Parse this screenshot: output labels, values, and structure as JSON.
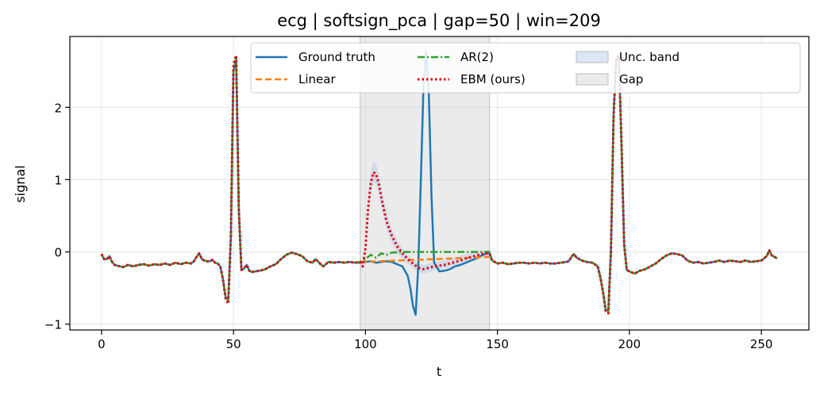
{
  "chart_data": {
    "type": "line",
    "title": "ecg | softsign_pca | gap=50 | win=209",
    "xlabel": "t",
    "ylabel": "signal",
    "xlim": [
      -12,
      268
    ],
    "ylim": [
      -1.08,
      2.98
    ],
    "xticks": [
      0,
      50,
      100,
      150,
      200,
      250
    ],
    "yticks": [
      -1,
      0,
      1,
      2
    ],
    "ytick_labels": [
      "−1",
      "0",
      "1",
      "2"
    ],
    "grid": true,
    "legend_position": "top-right",
    "gap_region": [
      98,
      147
    ],
    "series": [
      {
        "name": "Ground truth",
        "color": "#1f77b4",
        "style": "solid",
        "x": [
          0,
          1,
          2,
          3,
          4,
          5,
          6,
          7,
          8,
          9,
          10,
          12,
          14,
          16,
          18,
          20,
          22,
          24,
          26,
          28,
          30,
          32,
          34,
          35,
          36,
          37,
          38,
          39,
          40,
          41,
          42,
          43,
          44,
          45,
          46,
          47,
          48,
          49,
          50,
          51,
          52,
          53,
          54,
          55,
          56,
          57,
          58,
          60,
          62,
          64,
          66,
          68,
          70,
          72,
          74,
          76,
          78,
          80,
          81,
          82,
          83,
          84,
          86,
          88,
          90,
          92,
          94,
          96,
          98,
          100,
          102,
          104,
          106,
          108,
          110,
          112,
          114,
          116,
          117,
          118,
          119,
          120,
          121,
          122,
          123,
          124,
          125,
          126,
          128,
          130,
          132,
          134,
          136,
          138,
          140,
          142,
          144,
          146,
          147,
          148,
          150,
          152,
          154,
          156,
          158,
          160,
          162,
          164,
          166,
          168,
          170,
          172,
          174,
          176,
          177,
          178,
          179,
          180,
          181,
          182,
          184,
          186,
          188,
          189,
          190,
          191,
          192,
          193,
          194,
          195,
          196,
          197,
          198,
          199,
          200,
          202,
          204,
          206,
          208,
          210,
          212,
          214,
          216,
          218,
          220,
          222,
          224,
          226,
          228,
          230,
          232,
          234,
          236,
          238,
          240,
          242,
          244,
          246,
          248,
          250,
          252,
          253,
          254,
          256
        ],
        "y": [
          -0.03,
          -0.1,
          -0.1,
          -0.06,
          -0.14,
          -0.18,
          -0.19,
          -0.2,
          -0.21,
          -0.2,
          -0.18,
          -0.2,
          -0.18,
          -0.17,
          -0.19,
          -0.17,
          -0.18,
          -0.16,
          -0.18,
          -0.15,
          -0.17,
          -0.15,
          -0.16,
          -0.13,
          -0.07,
          -0.02,
          -0.1,
          -0.12,
          -0.13,
          -0.13,
          -0.11,
          -0.15,
          -0.16,
          -0.2,
          -0.38,
          -0.62,
          -0.68,
          0.2,
          2.5,
          2.68,
          0.6,
          -0.25,
          -0.23,
          -0.18,
          -0.26,
          -0.28,
          -0.27,
          -0.26,
          -0.24,
          -0.2,
          -0.17,
          -0.1,
          -0.04,
          -0.01,
          -0.03,
          -0.06,
          -0.13,
          -0.15,
          -0.1,
          -0.13,
          -0.17,
          -0.2,
          -0.14,
          -0.15,
          -0.14,
          -0.15,
          -0.14,
          -0.15,
          -0.15,
          -0.14,
          -0.13,
          -0.15,
          -0.14,
          -0.13,
          -0.14,
          -0.17,
          -0.2,
          -0.33,
          -0.5,
          -0.75,
          -0.87,
          -0.2,
          1.0,
          2.3,
          2.78,
          2.2,
          0.8,
          -0.15,
          -0.27,
          -0.26,
          -0.24,
          -0.2,
          -0.18,
          -0.15,
          -0.12,
          -0.09,
          -0.05,
          -0.02,
          -0.02,
          -0.12,
          -0.16,
          -0.15,
          -0.17,
          -0.16,
          -0.15,
          -0.15,
          -0.16,
          -0.15,
          -0.16,
          -0.15,
          -0.16,
          -0.16,
          -0.15,
          -0.14,
          -0.13,
          -0.07,
          -0.03,
          -0.08,
          -0.1,
          -0.12,
          -0.14,
          -0.15,
          -0.2,
          -0.35,
          -0.55,
          -0.8,
          -0.82,
          0.0,
          1.9,
          2.65,
          2.7,
          1.5,
          0.1,
          -0.25,
          -0.27,
          -0.3,
          -0.26,
          -0.24,
          -0.2,
          -0.16,
          -0.1,
          -0.05,
          -0.02,
          -0.03,
          -0.05,
          -0.12,
          -0.15,
          -0.14,
          -0.16,
          -0.15,
          -0.14,
          -0.12,
          -0.14,
          -0.12,
          -0.13,
          -0.14,
          -0.12,
          -0.14,
          -0.13,
          -0.12,
          -0.06,
          0.02,
          -0.05,
          -0.09
        ]
      },
      {
        "name": "Linear",
        "color": "#ff7f0e",
        "style": "dashed",
        "x": [
          98,
          147
        ],
        "y": [
          -0.14,
          -0.07
        ]
      },
      {
        "name": "AR(2)",
        "color": "#2ca02c",
        "style": "dashdot",
        "x": [
          0,
          1,
          2,
          3,
          4,
          5,
          6,
          7,
          8,
          9,
          10,
          12,
          14,
          16,
          18,
          20,
          22,
          24,
          26,
          28,
          30,
          32,
          34,
          35,
          36,
          37,
          38,
          39,
          40,
          41,
          42,
          43,
          44,
          45,
          46,
          47,
          48,
          49,
          50,
          51,
          52,
          53,
          54,
          55,
          56,
          57,
          58,
          60,
          62,
          64,
          66,
          68,
          70,
          72,
          74,
          76,
          78,
          80,
          81,
          82,
          83,
          84,
          86,
          88,
          90,
          92,
          94,
          96,
          98,
          100,
          102,
          104,
          106,
          108,
          110,
          115,
          120,
          125,
          130,
          135,
          140,
          145,
          147,
          148,
          150,
          152,
          154,
          156,
          158,
          160,
          162,
          164,
          166,
          168,
          170,
          172,
          174,
          176,
          177,
          178,
          179,
          180,
          181,
          182,
          184,
          186,
          188,
          189,
          190,
          191,
          192,
          193,
          194,
          195,
          196,
          197,
          198,
          199,
          200,
          202,
          204,
          206,
          208,
          210,
          212,
          214,
          216,
          218,
          220,
          222,
          224,
          226,
          228,
          230,
          232,
          234,
          236,
          238,
          240,
          242,
          244,
          246,
          248,
          250,
          252,
          253,
          254,
          256
        ],
        "y": [
          -0.03,
          -0.1,
          -0.1,
          -0.06,
          -0.14,
          -0.18,
          -0.19,
          -0.2,
          -0.21,
          -0.2,
          -0.18,
          -0.2,
          -0.18,
          -0.17,
          -0.19,
          -0.17,
          -0.18,
          -0.16,
          -0.18,
          -0.15,
          -0.17,
          -0.15,
          -0.16,
          -0.13,
          -0.07,
          -0.02,
          -0.1,
          -0.12,
          -0.13,
          -0.13,
          -0.11,
          -0.15,
          -0.16,
          -0.2,
          -0.38,
          -0.62,
          -0.68,
          0.2,
          2.5,
          2.68,
          0.6,
          -0.25,
          -0.23,
          -0.18,
          -0.26,
          -0.28,
          -0.27,
          -0.26,
          -0.24,
          -0.2,
          -0.17,
          -0.1,
          -0.04,
          -0.01,
          -0.03,
          -0.06,
          -0.13,
          -0.15,
          -0.1,
          -0.13,
          -0.17,
          -0.2,
          -0.14,
          -0.15,
          -0.14,
          -0.15,
          -0.14,
          -0.15,
          -0.14,
          -0.1,
          -0.04,
          -0.08,
          -0.02,
          -0.04,
          -0.01,
          0.0,
          0.0,
          0.0,
          0.0,
          0.0,
          0.0,
          0.0,
          0.0,
          -0.12,
          -0.16,
          -0.15,
          -0.17,
          -0.16,
          -0.15,
          -0.15,
          -0.16,
          -0.15,
          -0.16,
          -0.15,
          -0.16,
          -0.16,
          -0.15,
          -0.14,
          -0.13,
          -0.07,
          -0.03,
          -0.08,
          -0.1,
          -0.12,
          -0.14,
          -0.15,
          -0.2,
          -0.35,
          -0.55,
          -0.8,
          -0.82,
          0.0,
          1.9,
          2.65,
          2.7,
          1.5,
          0.1,
          -0.25,
          -0.27,
          -0.3,
          -0.26,
          -0.24,
          -0.2,
          -0.16,
          -0.1,
          -0.05,
          -0.02,
          -0.03,
          -0.05,
          -0.12,
          -0.15,
          -0.14,
          -0.16,
          -0.15,
          -0.14,
          -0.12,
          -0.14,
          -0.12,
          -0.13,
          -0.14,
          -0.12,
          -0.14,
          -0.13,
          -0.12,
          -0.06,
          0.02,
          -0.05,
          -0.09
        ]
      },
      {
        "name": "EBM (ours)",
        "color": "#e8000b",
        "style": "dotted",
        "x": [
          0,
          1,
          2,
          3,
          4,
          5,
          6,
          7,
          8,
          9,
          10,
          12,
          14,
          16,
          18,
          20,
          22,
          24,
          26,
          28,
          30,
          32,
          34,
          35,
          36,
          37,
          38,
          39,
          40,
          41,
          42,
          43,
          44,
          45,
          46,
          47,
          48,
          49,
          50,
          51,
          52,
          53,
          54,
          55,
          56,
          57,
          58,
          60,
          62,
          64,
          66,
          68,
          70,
          72,
          74,
          76,
          78,
          80,
          81,
          82,
          83,
          84,
          86,
          88,
          90,
          92,
          94,
          96,
          98,
          99,
          100,
          101,
          102,
          103,
          104,
          105,
          106,
          107,
          108,
          110,
          112,
          114,
          116,
          118,
          120,
          122,
          124,
          126,
          128,
          130,
          132,
          134,
          136,
          138,
          140,
          142,
          144,
          146,
          147,
          148,
          150,
          152,
          154,
          156,
          158,
          160,
          162,
          164,
          166,
          168,
          170,
          172,
          174,
          176,
          177,
          178,
          179,
          180,
          181,
          182,
          184,
          186,
          188,
          189,
          190,
          191,
          192,
          193,
          194,
          195,
          196,
          197,
          198,
          199,
          200,
          202,
          204,
          206,
          208,
          210,
          212,
          214,
          216,
          218,
          220,
          222,
          224,
          226,
          228,
          230,
          232,
          234,
          236,
          238,
          240,
          242,
          244,
          246,
          248,
          250,
          252,
          253,
          254,
          256
        ],
        "y": [
          -0.03,
          -0.1,
          -0.1,
          -0.06,
          -0.14,
          -0.18,
          -0.19,
          -0.2,
          -0.21,
          -0.2,
          -0.18,
          -0.2,
          -0.18,
          -0.17,
          -0.19,
          -0.17,
          -0.18,
          -0.16,
          -0.18,
          -0.15,
          -0.17,
          -0.15,
          -0.16,
          -0.13,
          -0.07,
          -0.02,
          -0.1,
          -0.12,
          -0.13,
          -0.13,
          -0.11,
          -0.15,
          -0.16,
          -0.2,
          -0.38,
          -0.65,
          -0.72,
          0.2,
          2.6,
          2.72,
          0.6,
          -0.25,
          -0.23,
          -0.18,
          -0.26,
          -0.28,
          -0.27,
          -0.26,
          -0.24,
          -0.2,
          -0.17,
          -0.1,
          -0.04,
          -0.01,
          -0.03,
          -0.06,
          -0.13,
          -0.15,
          -0.1,
          -0.13,
          -0.17,
          -0.2,
          -0.14,
          -0.15,
          -0.14,
          -0.15,
          -0.14,
          -0.15,
          -0.14,
          -0.2,
          0.05,
          0.6,
          0.95,
          1.1,
          1.08,
          0.95,
          0.75,
          0.58,
          0.42,
          0.22,
          0.08,
          -0.02,
          -0.1,
          -0.16,
          -0.22,
          -0.24,
          -0.22,
          -0.2,
          -0.19,
          -0.18,
          -0.16,
          -0.14,
          -0.12,
          -0.09,
          -0.07,
          -0.05,
          -0.03,
          -0.02,
          -0.02,
          -0.12,
          -0.16,
          -0.15,
          -0.17,
          -0.16,
          -0.15,
          -0.15,
          -0.16,
          -0.15,
          -0.16,
          -0.15,
          -0.16,
          -0.16,
          -0.15,
          -0.14,
          -0.13,
          -0.07,
          -0.03,
          -0.08,
          -0.1,
          -0.12,
          -0.14,
          -0.15,
          -0.2,
          -0.35,
          -0.55,
          -0.82,
          -0.85,
          0.0,
          1.9,
          2.68,
          2.72,
          1.5,
          0.1,
          -0.25,
          -0.27,
          -0.3,
          -0.26,
          -0.24,
          -0.2,
          -0.16,
          -0.1,
          -0.05,
          -0.02,
          -0.03,
          -0.05,
          -0.12,
          -0.15,
          -0.14,
          -0.16,
          -0.15,
          -0.14,
          -0.12,
          -0.14,
          -0.12,
          -0.13,
          -0.14,
          -0.12,
          -0.14,
          -0.13,
          -0.12,
          -0.06,
          0.02,
          -0.05,
          -0.09
        ]
      }
    ],
    "uncertainty_band": {
      "name": "Unc. band",
      "color": "#aec7e8",
      "x": [
        98,
        99,
        100,
        101,
        102,
        103,
        104,
        105,
        106,
        107,
        108,
        110,
        112,
        114,
        116,
        118,
        120,
        122,
        124,
        126,
        128,
        130,
        132,
        134,
        136,
        138,
        140,
        142,
        144,
        146,
        147
      ],
      "lower": [
        -0.35,
        -0.2,
        0.0,
        0.45,
        0.8,
        0.95,
        0.95,
        0.82,
        0.62,
        0.46,
        0.32,
        0.12,
        -0.02,
        -0.1,
        -0.16,
        -0.22,
        -0.28,
        -0.3,
        -0.28,
        -0.26,
        -0.24,
        -0.23,
        -0.21,
        -0.19,
        -0.16,
        -0.13,
        -0.11,
        -0.09,
        -0.07,
        -0.06,
        -0.06
      ],
      "upper": [
        -0.1,
        -0.12,
        0.12,
        0.75,
        1.1,
        1.25,
        1.22,
        1.08,
        0.88,
        0.7,
        0.54,
        0.32,
        0.16,
        0.05,
        -0.04,
        -0.1,
        -0.16,
        -0.18,
        -0.16,
        -0.14,
        -0.13,
        -0.12,
        -0.1,
        -0.08,
        -0.05,
        -0.03,
        -0.01,
        0.0,
        0.01,
        0.02,
        0.02
      ]
    },
    "legend": [
      {
        "label": "Ground truth",
        "kind": "line",
        "color": "#1f77b4",
        "style": "solid"
      },
      {
        "label": "Linear",
        "kind": "line",
        "color": "#ff7f0e",
        "style": "dashed"
      },
      {
        "label": "AR(2)",
        "kind": "line",
        "color": "#2ca02c",
        "style": "dashdot"
      },
      {
        "label": "EBM (ours)",
        "kind": "line",
        "color": "#e8000b",
        "style": "dotted"
      },
      {
        "label": "Unc. band",
        "kind": "patch",
        "color": "#aec7e8"
      },
      {
        "label": "Gap",
        "kind": "patch",
        "color": "#d3d3d3"
      }
    ]
  }
}
